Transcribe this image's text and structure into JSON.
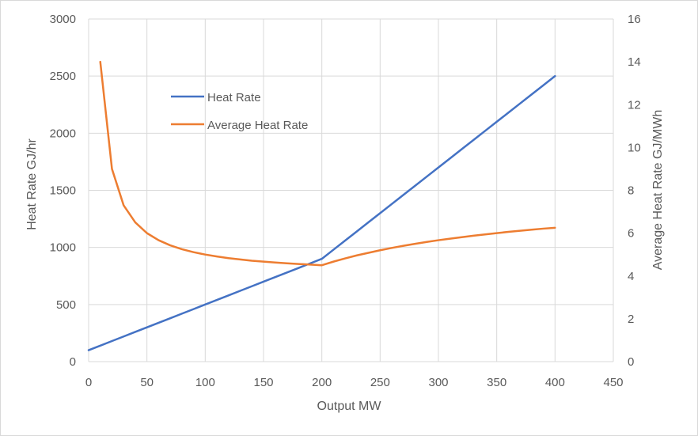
{
  "chart_data": {
    "type": "line",
    "title": "",
    "xlabel": "Output MW",
    "ylabel": "Heat Rate GJ/hr",
    "y2label": "Average Heat Rate GJ/MWh",
    "xlim": [
      0,
      450
    ],
    "ylim": [
      0,
      3000
    ],
    "y2lim": [
      0,
      16
    ],
    "x_ticks": [
      0,
      50,
      100,
      150,
      200,
      250,
      300,
      350,
      400,
      450
    ],
    "y_ticks": [
      0,
      500,
      1000,
      1500,
      2000,
      2500,
      3000
    ],
    "y2_ticks": [
      0,
      2,
      4,
      6,
      8,
      10,
      12,
      14,
      16
    ],
    "grid": true,
    "legend_position": "upper-left-inside",
    "series": [
      {
        "name": "Heat Rate",
        "axis": "left",
        "color": "#4472C4",
        "x": [
          0,
          10,
          20,
          30,
          40,
          50,
          60,
          70,
          80,
          90,
          100,
          110,
          120,
          130,
          140,
          150,
          160,
          170,
          180,
          190,
          200,
          210,
          220,
          230,
          240,
          250,
          260,
          270,
          280,
          290,
          300,
          310,
          320,
          330,
          340,
          350,
          360,
          370,
          380,
          390,
          400
        ],
        "values": [
          100,
          140,
          180,
          220,
          260,
          300,
          340,
          380,
          420,
          460,
          500,
          540,
          580,
          620,
          660,
          700,
          740,
          780,
          820,
          860,
          900,
          980,
          1060,
          1140,
          1220,
          1300,
          1380,
          1460,
          1540,
          1620,
          1700,
          1780,
          1860,
          1940,
          2020,
          2100,
          2180,
          2260,
          2340,
          2420,
          2500
        ]
      },
      {
        "name": "Average Heat Rate",
        "axis": "right",
        "color": "#ED7D31",
        "x": [
          10,
          20,
          30,
          40,
          50,
          60,
          70,
          80,
          90,
          100,
          110,
          120,
          130,
          140,
          150,
          160,
          170,
          180,
          190,
          200,
          210,
          220,
          230,
          240,
          250,
          260,
          270,
          280,
          290,
          300,
          310,
          320,
          330,
          340,
          350,
          360,
          370,
          380,
          390,
          400
        ],
        "values": [
          14.0,
          9.0,
          7.3,
          6.5,
          6.0,
          5.67,
          5.43,
          5.25,
          5.11,
          5.0,
          4.91,
          4.83,
          4.77,
          4.71,
          4.67,
          4.63,
          4.59,
          4.56,
          4.53,
          4.5,
          4.67,
          4.82,
          4.96,
          5.08,
          5.2,
          5.31,
          5.41,
          5.5,
          5.59,
          5.67,
          5.74,
          5.81,
          5.88,
          5.94,
          6.0,
          6.06,
          6.11,
          6.16,
          6.21,
          6.25
        ]
      }
    ]
  }
}
